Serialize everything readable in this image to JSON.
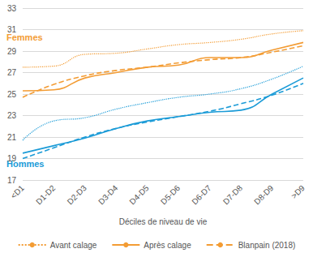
{
  "chart_data": {
    "type": "line",
    "x_label": "Déciles de niveau de vie",
    "categories": [
      "<D1",
      "D1-D2",
      "D2-D3",
      "D3-D4",
      "D4-D5",
      "D5-D6",
      "D6-D7",
      "D7-D8",
      "D8-D9",
      ">D9"
    ],
    "series": [
      {
        "name": "Avant calage",
        "color": "#f39c34",
        "line_style": "dotted",
        "values": [
          27.5,
          27.6,
          28.7,
          28.8,
          29.2,
          29.6,
          29.8,
          30.1,
          30.6,
          30.9
        ]
      },
      {
        "name": "Après calage",
        "color": "#f39c34",
        "line_style": "solid",
        "values": [
          25.3,
          25.4,
          26.5,
          27.0,
          27.5,
          27.7,
          28.4,
          28.4,
          29.1,
          29.8
        ]
      },
      {
        "name": "Blanpain (2018)",
        "color": "#f39c34",
        "line_style": "dashed",
        "values": [
          24.7,
          25.9,
          26.7,
          27.2,
          27.5,
          27.9,
          28.2,
          28.4,
          28.9,
          29.5
        ]
      },
      {
        "name": "Avant calage",
        "color": "#1b9bd7",
        "line_style": "dotted",
        "values": [
          20.7,
          22.5,
          22.8,
          23.6,
          24.2,
          24.7,
          25.0,
          25.5,
          26.4,
          27.6
        ]
      },
      {
        "name": "Après calage",
        "color": "#1b9bd7",
        "line_style": "solid",
        "values": [
          19.5,
          20.2,
          20.9,
          21.8,
          22.5,
          22.9,
          23.3,
          23.5,
          25.0,
          26.5
        ]
      },
      {
        "name": "Blanpain (2018)",
        "color": "#1b9bd7",
        "line_style": "dashed",
        "values": [
          19.0,
          20.0,
          21.0,
          21.8,
          22.4,
          22.9,
          23.4,
          24.1,
          24.9,
          26.0
        ]
      }
    ],
    "annotations": [
      {
        "text": "Femmes",
        "color": "#f39c34"
      },
      {
        "text": "Hommes",
        "color": "#1b9bd7"
      }
    ],
    "ylim": [
      17,
      33
    ],
    "yticks": [
      17,
      19,
      21,
      23,
      25,
      27,
      29,
      31,
      33
    ],
    "grid": true,
    "legend": "bottom"
  }
}
